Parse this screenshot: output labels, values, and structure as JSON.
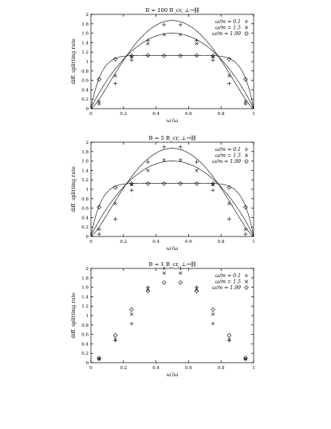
{
  "chart_data": [
    {
      "type": "line",
      "title": "B = 100 B_cr, ⊥→∥∥",
      "xlabel": "ω′/ω",
      "ylabel": "diff. splitting rate",
      "xlim": [
        0,
        1
      ],
      "ylim": [
        0,
        2
      ],
      "x_ticks": [
        "0",
        "0.2",
        "0.4",
        "0.6",
        "0.8",
        "1"
      ],
      "y_ticks": [
        "0",
        "0.2",
        "0.4",
        "0.6",
        "0.8",
        "1",
        "1.2",
        "1.4",
        "1.6",
        "1.8",
        "2"
      ],
      "legend_position": "top-right",
      "series": [
        {
          "name": "ω/m = 0.1",
          "marker": "plus",
          "peak": 1.87,
          "x": [
            0.05,
            0.15,
            0.25,
            0.35,
            0.45,
            0.55,
            0.65,
            0.75,
            0.85,
            0.95
          ],
          "values": [
            0.1,
            0.53,
            1.03,
            1.45,
            1.78,
            1.78,
            1.45,
            1.03,
            0.53,
            0.1
          ]
        },
        {
          "name": "ω/m = 1.5",
          "marker": "cross",
          "peak": 1.6,
          "x": [
            0.05,
            0.15,
            0.25,
            0.35,
            0.45,
            0.55,
            0.65,
            0.75,
            0.85,
            0.95
          ],
          "values": [
            0.15,
            0.7,
            1.1,
            1.38,
            1.57,
            1.57,
            1.38,
            1.1,
            0.7,
            0.15
          ]
        },
        {
          "name": "ω/m = 1.99",
          "marker": "diamond",
          "peak": 1.13,
          "x": [
            0.05,
            0.15,
            0.25,
            0.35,
            0.45,
            0.55,
            0.65,
            0.75,
            0.85,
            0.95
          ],
          "values": [
            0.62,
            1.05,
            1.12,
            1.13,
            1.12,
            1.12,
            1.13,
            1.12,
            1.05,
            0.62
          ]
        }
      ]
    },
    {
      "type": "line",
      "title": "B = 5 B_cr, ⊥→∥∥",
      "xlabel": "ω′/ω",
      "ylabel": "diff. splitting rate",
      "xlim": [
        0,
        1
      ],
      "ylim": [
        0,
        2
      ],
      "x_ticks": [
        "0",
        "0.2",
        "0.4",
        "0.6",
        "0.8",
        "1"
      ],
      "y_ticks": [
        "0",
        "0.2",
        "0.4",
        "0.6",
        "0.8",
        "1",
        "1.2",
        "1.4",
        "1.6",
        "1.8",
        "2"
      ],
      "legend_position": "top-right",
      "series": [
        {
          "name": "ω/m = 0.1",
          "marker": "plus",
          "peak": 1.87,
          "x": [
            0.05,
            0.15,
            0.25,
            0.35,
            0.45,
            0.55,
            0.65,
            0.75,
            0.85,
            0.95
          ],
          "values": [
            0.05,
            0.37,
            0.98,
            1.58,
            1.9,
            1.9,
            1.58,
            0.98,
            0.37,
            0.05
          ]
        },
        {
          "name": "ω/m = 1.5",
          "marker": "cross",
          "peak": 1.6,
          "x": [
            0.05,
            0.15,
            0.25,
            0.35,
            0.45,
            0.55,
            0.65,
            0.75,
            0.85,
            0.95
          ],
          "values": [
            0.15,
            0.7,
            1.1,
            1.4,
            1.62,
            1.62,
            1.4,
            1.1,
            0.7,
            0.15
          ]
        },
        {
          "name": "ω/m = 1.99",
          "marker": "diamond",
          "peak": 1.13,
          "x": [
            0.05,
            0.15,
            0.25,
            0.35,
            0.45,
            0.55,
            0.65,
            0.75,
            0.85,
            0.95
          ],
          "values": [
            0.62,
            1.04,
            1.12,
            1.12,
            1.12,
            1.12,
            1.12,
            1.12,
            1.04,
            0.62
          ]
        }
      ]
    },
    {
      "type": "scatter",
      "title": "B = 1 B_cr, ⊥→∥∥",
      "xlabel": "ω′/ω",
      "ylabel": "diff. splitting rate",
      "xlim": [
        0,
        1
      ],
      "ylim": [
        0,
        2
      ],
      "x_ticks": [
        "0",
        "0.2",
        "0.4",
        "0.6",
        "0.8",
        "1"
      ],
      "y_ticks": [
        "0",
        "0.2",
        "0.4",
        "0.6",
        "0.8",
        "1",
        "1.2",
        "1.4",
        "1.6",
        "1.8",
        "2"
      ],
      "legend_position": "top-right",
      "series": [
        {
          "name": "ω/m = 0.1",
          "marker": "plus",
          "x": [
            0.05,
            0.15,
            0.25,
            0.35,
            0.45,
            0.55,
            0.65,
            0.75,
            0.85,
            0.95
          ],
          "values": [
            0.07,
            0.47,
            0.83,
            1.6,
            2.0,
            2.0,
            1.6,
            0.83,
            0.47,
            0.07
          ]
        },
        {
          "name": "ω/m = 1.5",
          "marker": "cross",
          "x": [
            0.05,
            0.15,
            0.25,
            0.35,
            0.45,
            0.55,
            0.65,
            0.75,
            0.85,
            0.95
          ],
          "values": [
            0.08,
            0.5,
            1.03,
            1.55,
            1.9,
            1.9,
            1.55,
            1.03,
            0.5,
            0.08
          ]
        },
        {
          "name": "ω/m = 1.99",
          "marker": "diamond",
          "x": [
            0.05,
            0.15,
            0.25,
            0.35,
            0.45,
            0.55,
            0.65,
            0.75,
            0.85,
            0.95
          ],
          "values": [
            0.1,
            0.58,
            1.13,
            1.52,
            1.7,
            1.7,
            1.52,
            1.13,
            0.58,
            0.1
          ]
        }
      ]
    }
  ]
}
